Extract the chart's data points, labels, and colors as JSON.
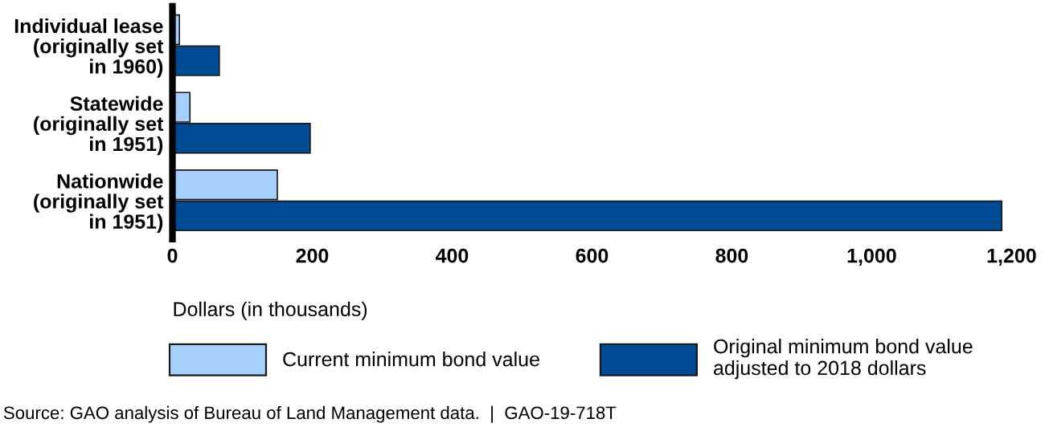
{
  "chart_data": {
    "type": "bar",
    "orientation": "horizontal",
    "categories": [
      "Individual lease\n(originally set\nin 1960)",
      "Statewide\n(originally set\nin 1951)",
      "Nationwide\n(originally set\nin 1951)"
    ],
    "series": [
      {
        "name": "Current minimum bond value",
        "color": "#a6d0fb",
        "values": [
          10,
          25,
          150
        ]
      },
      {
        "name": "Original minimum bond value\nadjusted to 2018 dollars",
        "color": "#004b93",
        "values": [
          67,
          197,
          1186
        ]
      }
    ],
    "xlim": [
      0,
      1200
    ],
    "xticks": [
      0,
      {
        "value": 200,
        "label": "200"
      },
      {
        "value": 400,
        "label": "400"
      },
      {
        "value": 600,
        "label": "600"
      },
      {
        "value": 800,
        "label": "800"
      },
      {
        "value": 1000,
        "label": "1,000"
      },
      {
        "value": 1200,
        "label": "1,200"
      }
    ],
    "xlabel": "Dollars (in thousands)",
    "legend": "bottom",
    "grid": false,
    "annotations": [
      "Source: GAO analysis of Bureau of Land Management data.  |  GAO-19-718T"
    ]
  }
}
